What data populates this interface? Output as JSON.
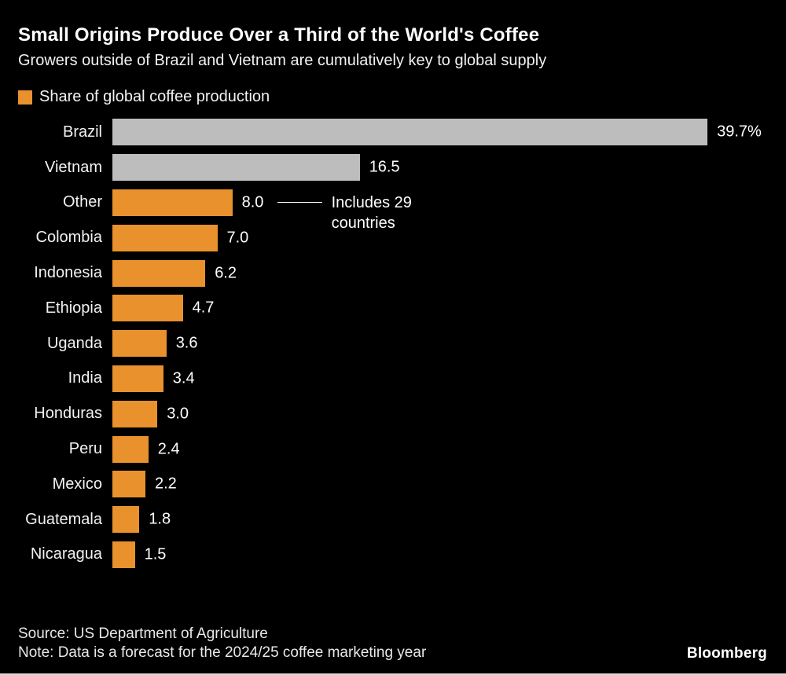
{
  "header": {
    "title": "Small Origins Produce Over a Third of the World's Coffee",
    "subtitle": "Growers outside of Brazil and Vietnam are cumulatively key to global supply"
  },
  "legend": {
    "label": "Share of global coffee production",
    "swatch_color": "#E8912D"
  },
  "chart_data": {
    "type": "bar",
    "orientation": "horizontal",
    "title": "Share of global coffee production",
    "xlabel": "",
    "ylabel": "",
    "xlim": [
      0,
      39.7
    ],
    "grid": false,
    "legend_position": "top-left",
    "categories": [
      "Brazil",
      "Vietnam",
      "Other",
      "Colombia",
      "Indonesia",
      "Ethiopia",
      "Uganda",
      "India",
      "Honduras",
      "Peru",
      "Mexico",
      "Guatemala",
      "Nicaragua"
    ],
    "values": [
      39.7,
      16.5,
      8.0,
      7.0,
      6.2,
      4.7,
      3.6,
      3.4,
      3.0,
      2.4,
      2.2,
      1.8,
      1.5
    ],
    "value_labels": [
      "39.7%",
      "16.5",
      "8.0",
      "7.0",
      "6.2",
      "4.7",
      "3.6",
      "3.4",
      "3.0",
      "2.4",
      "2.2",
      "1.8",
      "1.5"
    ],
    "bar_colors": [
      "#BDBDBD",
      "#BDBDBD",
      "#E8912D",
      "#E8912D",
      "#E8912D",
      "#E8912D",
      "#E8912D",
      "#E8912D",
      "#E8912D",
      "#E8912D",
      "#E8912D",
      "#E8912D",
      "#E8912D"
    ],
    "neutral_color": "#BDBDBD",
    "highlight_color": "#E8912D",
    "annotation": {
      "text": "Includes 29 countries",
      "target_category": "Other"
    }
  },
  "footer": {
    "source": "Source: US Department of Agriculture",
    "note": "Note: Data is a forecast for the 2024/25 coffee marketing year",
    "brand": "Bloomberg"
  }
}
